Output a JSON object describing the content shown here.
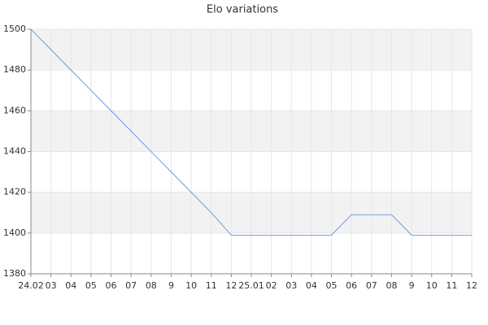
{
  "chart_data": {
    "type": "line",
    "title": "Elo variations",
    "categories": [
      "24.02",
      "03",
      "04",
      "05",
      "06",
      "07",
      "08",
      "9",
      "10",
      "11",
      "12",
      "25.01",
      "02",
      "03",
      "04",
      "05",
      "06",
      "07",
      "08",
      "9",
      "10",
      "11",
      "12"
    ],
    "values": [
      1500,
      1490,
      1480,
      1470,
      1460,
      1450,
      1440,
      1430,
      1420,
      1410,
      1399,
      1399,
      1399,
      1399,
      1399,
      1399,
      1409,
      1409,
      1409,
      1399,
      1399,
      1399,
      1399
    ],
    "color": "#4a86e8",
    "ylim": [
      1380,
      1500
    ],
    "yticks": [
      1380,
      1400,
      1420,
      1440,
      1460,
      1480,
      1500
    ],
    "grid": true
  }
}
